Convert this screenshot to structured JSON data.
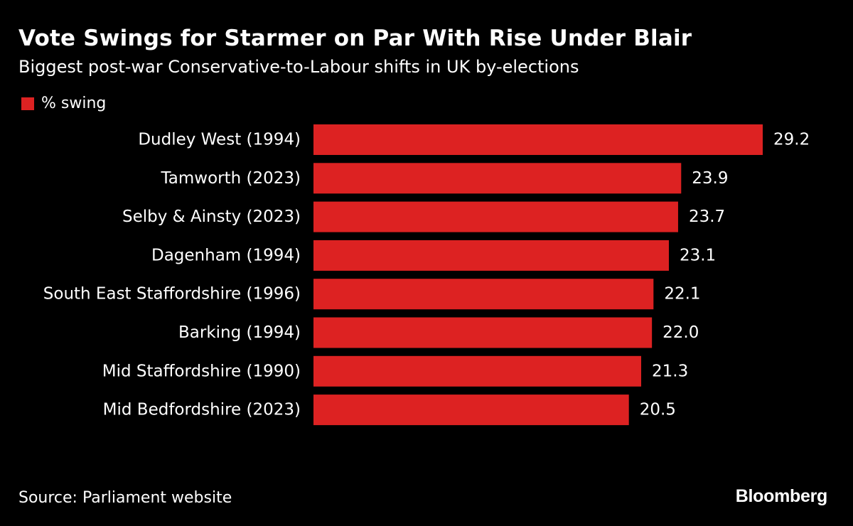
{
  "chart_data": {
    "type": "bar",
    "orientation": "horizontal",
    "title": "Vote Swings for Starmer on Par With Rise Under Blair",
    "subtitle": "Biggest post-war Conservative-to-Labour shifts in UK by-elections",
    "categories": [
      "Dudley West (1994)",
      "Tamworth (2023)",
      "Selby & Ainsty (2023)",
      "Dagenham (1994)",
      "South East Staffordshire (1996)",
      "Barking (1994)",
      "Mid Staffordshire (1990)",
      "Mid Bedfordshire (2023)"
    ],
    "series": [
      {
        "name": "% swing",
        "values": [
          29.2,
          23.9,
          23.7,
          23.1,
          22.1,
          22.0,
          21.3,
          20.5
        ],
        "labels": [
          "29.2",
          "23.9",
          "23.7",
          "23.1",
          "22.1",
          "22.0",
          "21.3",
          "20.5"
        ]
      }
    ],
    "xlim": [
      0,
      29.2
    ],
    "grid": false,
    "legend": "top-left",
    "source": "Source: Parliament website",
    "brand": "Bloomberg"
  },
  "colors": {
    "bar": "#dd2222",
    "background": "#000000",
    "text": "#ffffff"
  }
}
